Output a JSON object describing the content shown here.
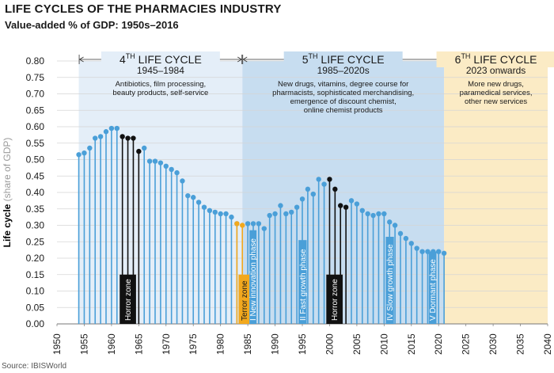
{
  "title": "LIFE CYCLES OF THE PHARMACIES INDUSTRY",
  "subtitle": "Value-added % of GDP: 1950s–2016",
  "source": "Source: IBISWorld",
  "colors": {
    "cycle4_band": "#e4eef8",
    "cycle5_band": "#c7ddf0",
    "cycle6_band": "#fbebc5",
    "series": "#4a9fd8",
    "horror": "#111111",
    "terror": "#f2a81d"
  },
  "chart_data": {
    "type": "bar",
    "title": "LIFE CYCLES OF THE PHARMACIES INDUSTRY",
    "subtitle": "Value-added % of GDP: 1950s–2016",
    "ylabel_main": "Life cycle",
    "ylabel_sub": "(share of GDP)",
    "xlim": [
      1950,
      2040
    ],
    "ylim": [
      0,
      0.8
    ],
    "x_ticks": [
      "1950",
      "1955",
      "1960",
      "1965",
      "1970",
      "1975",
      "1980",
      "1985",
      "1990",
      "1995",
      "2000",
      "2005",
      "2010",
      "2015",
      "2020",
      "2025",
      "2030",
      "2035",
      "2040"
    ],
    "y_ticks": [
      "0.00",
      "0.05",
      "0.10",
      "0.15",
      "0.20",
      "0.25",
      "0.30",
      "0.35",
      "0.40",
      "0.45",
      "0.50",
      "0.55",
      "0.60",
      "0.65",
      "0.70",
      "0.75",
      "0.80"
    ],
    "grid": true,
    "cycles": [
      {
        "title": "4",
        "sup": "TH",
        "suffix": " LIFE CYCLE",
        "years": "1945–1984",
        "desc": [
          "Antibiotics, film processing,",
          "beauty products, self-service"
        ],
        "start": 1954,
        "end": 1984
      },
      {
        "title": "5",
        "sup": "TH",
        "suffix": " LIFE CYCLE",
        "years": "1985–2020s",
        "desc": [
          "New drugs, vitamins, degree course for",
          "pharmacists, sophisticated merchandising,",
          "emergence of discount chemist,",
          "online chemist products"
        ],
        "start": 1984,
        "end": 2021
      },
      {
        "title": "6",
        "sup": "TH",
        "suffix": " LIFE CYCLE",
        "years": "2023 onwards",
        "desc": [
          "More new drugs,",
          "paramedical services,",
          "other new services"
        ],
        "start": 2021,
        "end": 2040
      }
    ],
    "zones": [
      {
        "label": "Horror zone",
        "start": 1961.5,
        "end": 1964.5,
        "kind": "horror"
      },
      {
        "label": "Terror zone",
        "start": 1983.3,
        "end": 1985.3,
        "kind": "terror"
      },
      {
        "label": "I New innovation phase",
        "start": 1985.3,
        "end": 1986.6,
        "kind": "phase"
      },
      {
        "label": "II Fast growth phase",
        "start": 1994.3,
        "end": 1995.8,
        "kind": "phase"
      },
      {
        "label": "Horror zone",
        "start": 1999.4,
        "end": 2002.4,
        "kind": "horror"
      },
      {
        "label": "IV Slow growth phase",
        "start": 2010.3,
        "end": 2011.8,
        "kind": "phase"
      },
      {
        "label": "V Dormant phase",
        "start": 2018.2,
        "end": 2019.6,
        "kind": "phase"
      }
    ],
    "series": [
      {
        "x": [
          1954,
          1955,
          1956,
          1957,
          1958,
          1959,
          1960,
          1961
        ],
        "y": [
          0.515,
          0.52,
          0.535,
          0.565,
          0.57,
          0.585,
          0.595,
          0.595
        ],
        "kind": "normal"
      },
      {
        "x": [
          1962,
          1963,
          1964,
          1965
        ],
        "y": [
          0.57,
          0.565,
          0.565,
          0.525
        ],
        "kind": "horror"
      },
      {
        "x": [
          1966,
          1967,
          1968,
          1969,
          1970,
          1971,
          1972,
          1973,
          1974,
          1975,
          1976,
          1977,
          1978,
          1979,
          1980,
          1981,
          1982,
          1983
        ],
        "y": [
          0.535,
          0.495,
          0.495,
          0.49,
          0.48,
          0.47,
          0.46,
          0.435,
          0.39,
          0.385,
          0.37,
          0.355,
          0.345,
          0.34,
          0.335,
          0.335,
          0.325,
          0.305
        ],
        "kind": "normal"
      },
      {
        "x": [
          1983,
          1984
        ],
        "y": [
          0.305,
          0.3
        ],
        "kind": "terror"
      },
      {
        "x": [
          1985,
          1986,
          1987,
          1988,
          1989,
          1990,
          1991,
          1992,
          1993,
          1994,
          1995,
          1996,
          1997,
          1998,
          1999
        ],
        "y": [
          0.305,
          0.305,
          0.305,
          0.29,
          0.33,
          0.335,
          0.36,
          0.335,
          0.34,
          0.355,
          0.38,
          0.41,
          0.395,
          0.44,
          0.425
        ],
        "kind": "normal"
      },
      {
        "x": [
          2000,
          2001,
          2002,
          2003
        ],
        "y": [
          0.44,
          0.41,
          0.36,
          0.355
        ],
        "kind": "horror"
      },
      {
        "x": [
          2004,
          2005,
          2006,
          2007,
          2008,
          2009,
          2010,
          2011,
          2012,
          2013,
          2014,
          2015,
          2016,
          2017,
          2018,
          2019,
          2020,
          2021
        ],
        "y": [
          0.375,
          0.365,
          0.345,
          0.335,
          0.33,
          0.335,
          0.335,
          0.31,
          0.3,
          0.275,
          0.26,
          0.245,
          0.23,
          0.22,
          0.22,
          0.22,
          0.22,
          0.215
        ],
        "kind": "normal"
      }
    ]
  }
}
